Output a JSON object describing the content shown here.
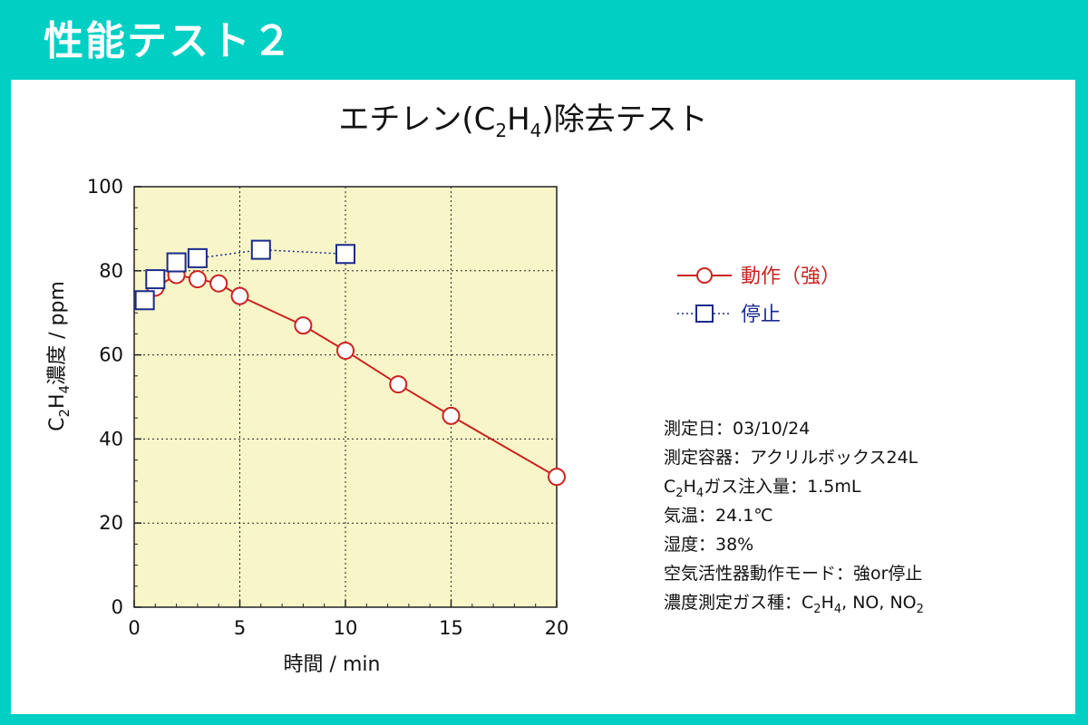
{
  "header": {
    "title": "性能テスト２"
  },
  "chart_data": {
    "type": "line",
    "title_parts": [
      "エチレン(C",
      "2",
      "H",
      "4",
      ")除去テスト"
    ],
    "xlabel": "時間 / min",
    "ylabel_parts": [
      "C",
      "2",
      "H",
      "4",
      "濃度 / ppm"
    ],
    "xlim": [
      0,
      20
    ],
    "ylim": [
      0,
      100
    ],
    "x_ticks": [
      0,
      5,
      10,
      15,
      20
    ],
    "y_ticks": [
      0,
      20,
      40,
      60,
      80,
      100
    ],
    "grid": true,
    "plot_background": "#f8f6c8",
    "legend_position": "right",
    "series": [
      {
        "name": "動作（強）",
        "color": "#cc2222",
        "marker": "circle",
        "line": "solid",
        "x": [
          0.5,
          1,
          2,
          3,
          4,
          5,
          8,
          10,
          12.5,
          15,
          20
        ],
        "y": [
          73,
          76,
          79,
          78,
          77,
          74,
          67,
          61,
          53,
          45.5,
          31
        ]
      },
      {
        "name": "停止",
        "color": "#1a2a8a",
        "marker": "square",
        "line": "dotted",
        "x": [
          0.5,
          1,
          2,
          3,
          6,
          10
        ],
        "y": [
          73,
          78,
          82,
          83,
          85,
          84
        ]
      }
    ]
  },
  "info": {
    "date": "測定日：03/10/24",
    "container": "測定容器：アクリルボックス24L",
    "injection_parts": [
      "C",
      "2",
      "H",
      "4",
      "ガス注入量：1.5mL"
    ],
    "temperature": "気温：24.1℃",
    "humidity": "湿度：38%",
    "mode": "空気活性器動作モード：強or停止",
    "gases_parts": [
      "濃度測定ガス種：C",
      "2",
      "H",
      "4",
      ", NO, NO",
      "2"
    ]
  }
}
